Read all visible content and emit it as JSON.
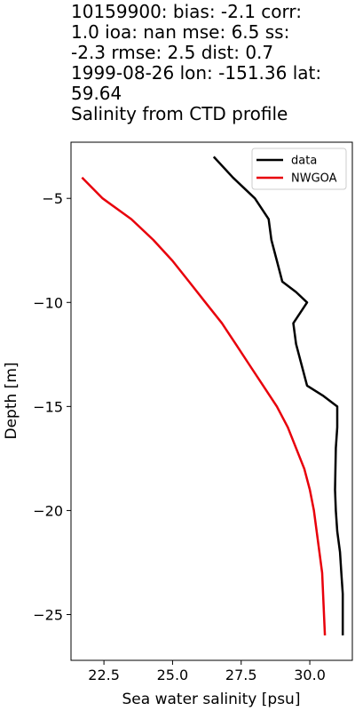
{
  "chart_data": {
    "type": "line",
    "title_lines": [
      "10159900: bias: -2.1  corr:",
      "1.0  ioa: nan  mse: 6.5  ss:",
      "-2.3  rmse: 2.5  dist: 0.7",
      "1999-08-26 lon: -151.36 lat:",
      "59.64",
      "Salinity from CTD profile"
    ],
    "xlabel": "Sea water salinity [psu]",
    "ylabel": "Depth [m]",
    "xlim": [
      21.3,
      31.55
    ],
    "ylim": [
      -27.2,
      -2.3
    ],
    "xticks": [
      22.5,
      25.0,
      27.5,
      30.0
    ],
    "xtick_labels": [
      "22.5",
      "25.0",
      "27.5",
      "30.0"
    ],
    "yticks": [
      -5,
      -10,
      -15,
      -20,
      -25
    ],
    "ytick_labels": [
      "−5",
      "−10",
      "−15",
      "−20",
      "−25"
    ],
    "legend_position": "top-right",
    "grid": false,
    "series": [
      {
        "name": "data",
        "color": "#000000",
        "x": [
          26.5,
          27.2,
          28.0,
          28.5,
          28.6,
          28.8,
          29.0,
          29.5,
          29.9,
          29.4,
          29.5,
          29.6,
          29.7,
          29.9,
          30.5,
          31.0,
          31.0,
          30.95,
          30.92,
          30.95,
          31.0,
          31.1,
          31.15,
          31.2,
          31.2,
          31.2
        ],
        "y": [
          -3,
          -4,
          -5,
          -6,
          -7,
          -8,
          -9,
          -9.5,
          -10,
          -11,
          -12,
          -12.5,
          -13,
          -14,
          -14.5,
          -15,
          -16,
          -17,
          -19,
          -20,
          -21,
          -22,
          -23,
          -24,
          -25,
          -26
        ]
      },
      {
        "name": "NWGOA",
        "color": "#e8000b",
        "x": [
          21.7,
          22.45,
          23.5,
          24.3,
          25.0,
          25.6,
          26.2,
          26.8,
          27.3,
          27.8,
          28.3,
          28.8,
          29.2,
          29.5,
          29.8,
          30.0,
          30.15,
          30.25,
          30.35,
          30.45,
          30.55
        ],
        "y": [
          -4,
          -5,
          -6,
          -7,
          -8,
          -9,
          -10,
          -11,
          -12,
          -13,
          -14,
          -15,
          -16,
          -17,
          -18,
          -19,
          -20,
          -21,
          -22,
          -23,
          -26
        ]
      }
    ]
  }
}
